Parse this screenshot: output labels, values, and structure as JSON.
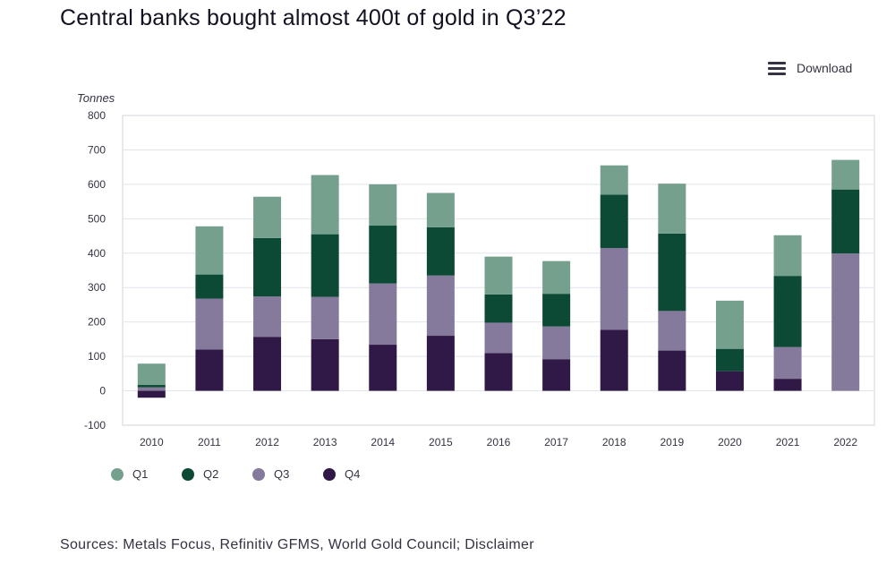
{
  "title": "Central banks bought almost 400t of gold in Q3’22",
  "download_label": "Download",
  "source": "Sources: Metals Focus, Refinitiv GFMS, World Gold Council; Disclaimer",
  "colors": {
    "Q1": "#76a08e",
    "Q2": "#0d4a36",
    "Q3": "#85799c",
    "Q4": "#301946",
    "grid": "#e2e4ea",
    "frame": "#d3d6dd"
  },
  "chart_data": {
    "type": "bar",
    "stacked": true,
    "title": "Central banks bought almost 400t of gold in Q3’22",
    "ylabel": "Tonnes",
    "xlabel": "",
    "ylim": [
      -100,
      800
    ],
    "yticks": [
      800,
      700,
      600,
      500,
      400,
      300,
      200,
      100,
      0,
      -100
    ],
    "ytick_labels": [
      "800",
      "700",
      "600",
      "500",
      "400",
      "300",
      "200",
      "100",
      "0",
      "-100"
    ],
    "grid": true,
    "legend_position": "bottom-left",
    "categories": [
      "2010",
      "2011",
      "2012",
      "2013",
      "2014",
      "2015",
      "2016",
      "2017",
      "2018",
      "2019",
      "2020",
      "2021",
      "2022"
    ],
    "series": [
      {
        "name": "Q1",
        "values": [
          62,
          140,
          120,
          172,
          120,
          100,
          110,
          95,
          85,
          145,
          140,
          118,
          86
        ]
      },
      {
        "name": "Q2",
        "values": [
          7,
          70,
          170,
          182,
          168,
          140,
          82,
          95,
          155,
          225,
          65,
          207,
          186
        ]
      },
      {
        "name": "Q3",
        "values": [
          10,
          148,
          117,
          123,
          178,
          175,
          88,
          95,
          238,
          115,
          0,
          92,
          399
        ]
      },
      {
        "name": "Q4",
        "values": [
          -20,
          120,
          157,
          150,
          134,
          160,
          110,
          92,
          177,
          117,
          57,
          35,
          0
        ]
      }
    ],
    "legend": [
      "Q1",
      "Q2",
      "Q3",
      "Q4"
    ]
  }
}
